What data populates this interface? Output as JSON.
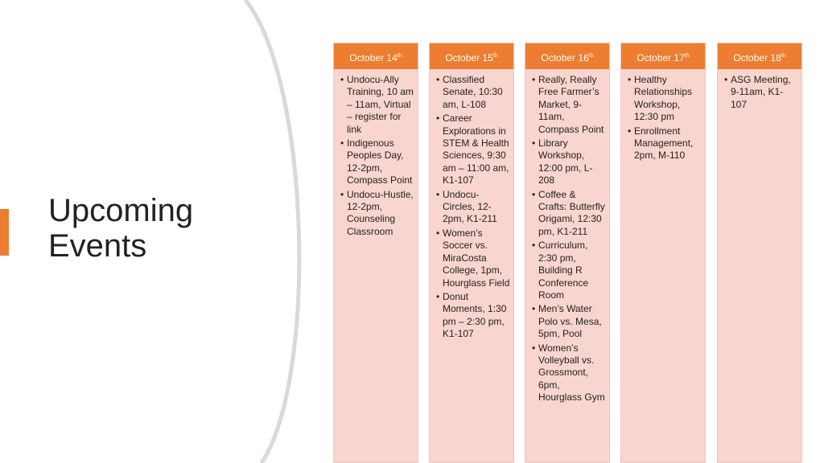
{
  "slide": {
    "title_line1": "Upcoming",
    "title_line2": "Events",
    "accent_color": "#ED7D31",
    "column_fill": "#F8D5CE",
    "arc_color": "#D9D9D9"
  },
  "days": [
    {
      "month_day": "October 14",
      "suffix": "th",
      "events": [
        "Undocu-Ally Training, 10 am – 11am, Virtual – register for link",
        "Indigenous Peoples Day, 12-2pm, Compass Point",
        "Undocu-Hustle, 12-2pm, Counseling Classroom"
      ]
    },
    {
      "month_day": "October 15",
      "suffix": "th",
      "events": [
        "Classified Senate, 10:30 am, L-108",
        "Career Explorations in STEM & Health Sciences, 9:30 am – 11:00 am, K1-107",
        "Undocu-Circles, 12-2pm, K1-211",
        "Women’s Soccer vs. MiraCosta College, 1pm, Hourglass Field",
        "Donut Moments, 1:30 pm – 2:30 pm, K1-107"
      ]
    },
    {
      "month_day": "October 16",
      "suffix": "th",
      "events": [
        "Really, Really Free Farmer’s Market, 9-11am, Compass Point",
        "Library Workshop, 12:00 pm, L-208",
        "Coffee & Crafts: Butterfly Origami, 12:30 pm, K1-211",
        "Curriculum, 2:30 pm, Building R Conference Room",
        "Men’s Water Polo vs. Mesa, 5pm, Pool",
        "Women’s Volleyball vs. Grossmont, 6pm, Hourglass Gym"
      ]
    },
    {
      "month_day": "October 17",
      "suffix": "th",
      "events": [
        "Healthy Relationships Workshop, 12:30 pm",
        "Enrollment Management, 2pm, M-110"
      ]
    },
    {
      "month_day": "October 18",
      "suffix": "th",
      "events": [
        "ASG Meeting, 9-11am, K1-107"
      ]
    }
  ]
}
